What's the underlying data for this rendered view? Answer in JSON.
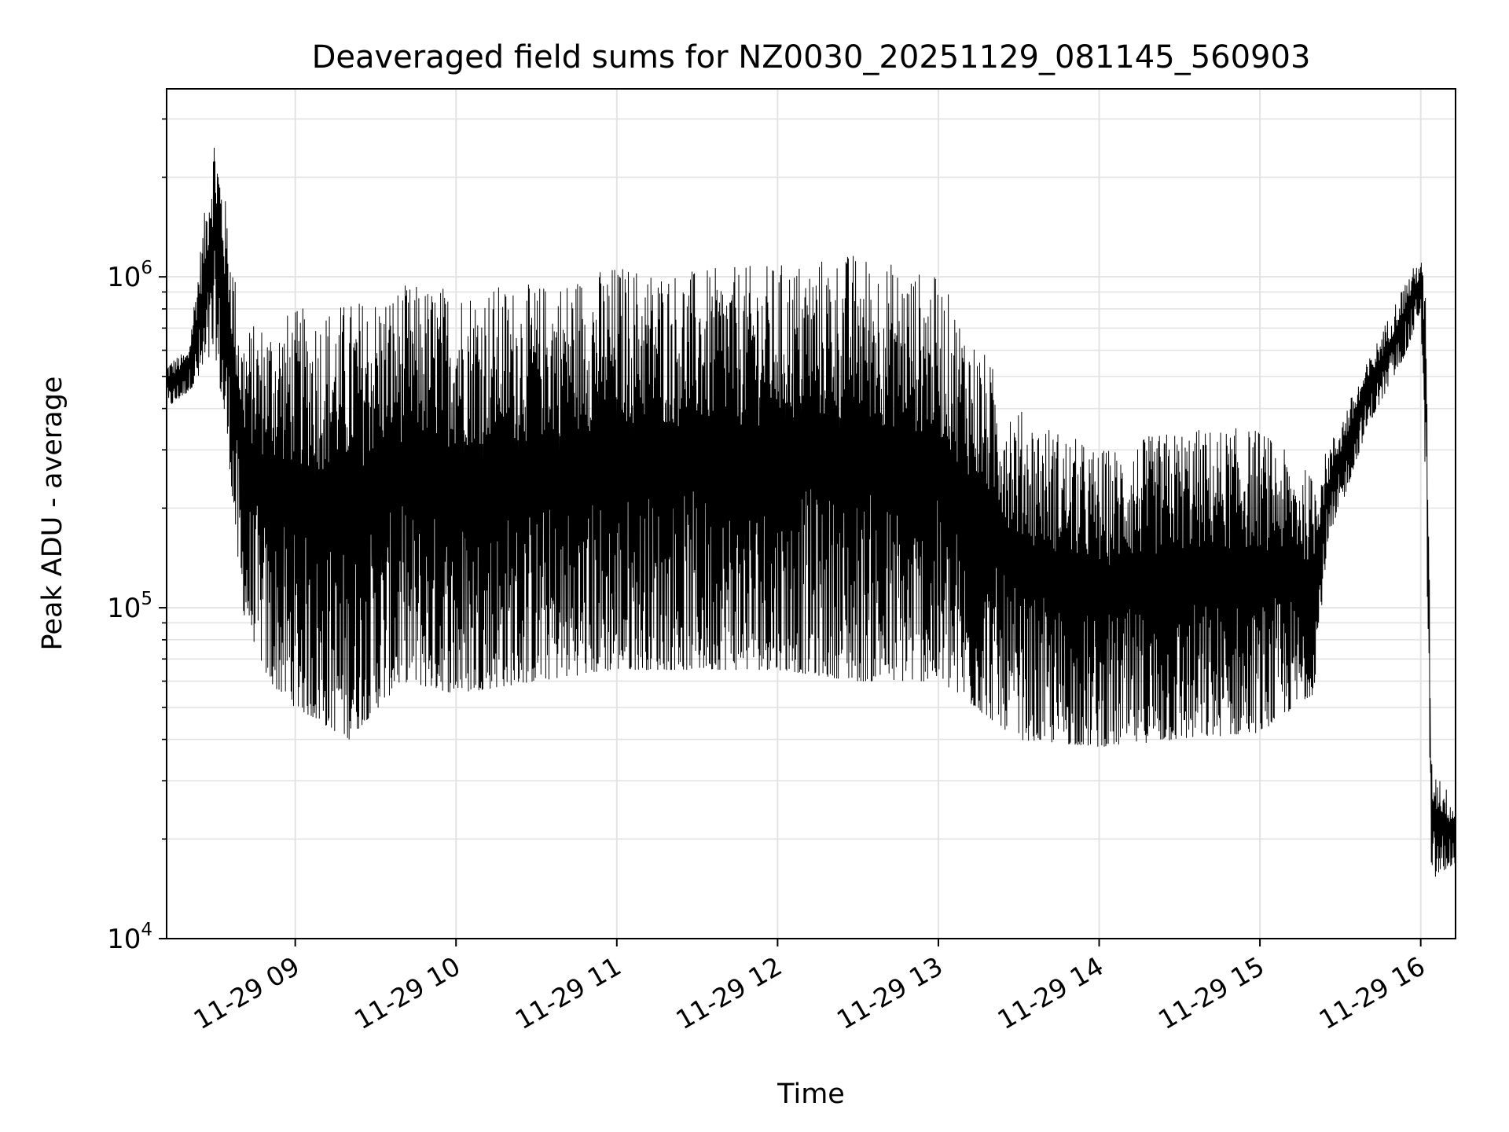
{
  "chart_data": {
    "type": "line",
    "title": "Deaveraged field sums for NZ0030_20251129_081145_560903",
    "xlabel": "Time",
    "ylabel": "Peak ADU - average",
    "yscale": "log",
    "ylim": [
      10000,
      3700000
    ],
    "xlim": [
      "2025-11-29 08:12",
      "2025-11-29 16:13"
    ],
    "grid": true,
    "line_color": "#000000",
    "x_ticks": [
      {
        "x": "2025-11-29 09:00",
        "label": "11-29 09"
      },
      {
        "x": "2025-11-29 10:00",
        "label": "11-29 10"
      },
      {
        "x": "2025-11-29 11:00",
        "label": "11-29 11"
      },
      {
        "x": "2025-11-29 12:00",
        "label": "11-29 12"
      },
      {
        "x": "2025-11-29 13:00",
        "label": "11-29 13"
      },
      {
        "x": "2025-11-29 14:00",
        "label": "11-29 14"
      },
      {
        "x": "2025-11-29 15:00",
        "label": "11-29 15"
      },
      {
        "x": "2025-11-29 16:00",
        "label": "11-29 16"
      }
    ],
    "y_ticks": [
      {
        "value": 10000,
        "base": "10",
        "exp": "4"
      },
      {
        "value": 100000,
        "base": "10",
        "exp": "5"
      },
      {
        "value": 1000000,
        "base": "10",
        "exp": "6"
      }
    ],
    "envelope": [
      {
        "x": "2025-11-29 08:12",
        "y_low": 400000,
        "y_high": 550000
      },
      {
        "x": "2025-11-29 08:20",
        "y_low": 450000,
        "y_high": 600000
      },
      {
        "x": "2025-11-29 08:25",
        "y_low": 500000,
        "y_high": 1300000
      },
      {
        "x": "2025-11-29 08:30",
        "y_low": 600000,
        "y_high": 2900000
      },
      {
        "x": "2025-11-29 08:35",
        "y_low": 300000,
        "y_high": 1500000
      },
      {
        "x": "2025-11-29 08:40",
        "y_low": 100000,
        "y_high": 700000
      },
      {
        "x": "2025-11-29 08:50",
        "y_low": 60000,
        "y_high": 750000
      },
      {
        "x": "2025-11-29 09:00",
        "y_low": 50000,
        "y_high": 800000
      },
      {
        "x": "2025-11-29 09:20",
        "y_low": 40000,
        "y_high": 850000
      },
      {
        "x": "2025-11-29 09:40",
        "y_low": 60000,
        "y_high": 950000
      },
      {
        "x": "2025-11-29 10:00",
        "y_low": 55000,
        "y_high": 950000
      },
      {
        "x": "2025-11-29 10:30",
        "y_low": 60000,
        "y_high": 950000
      },
      {
        "x": "2025-11-29 11:00",
        "y_low": 65000,
        "y_high": 1100000
      },
      {
        "x": "2025-11-29 11:30",
        "y_low": 65000,
        "y_high": 1050000
      },
      {
        "x": "2025-11-29 12:00",
        "y_low": 65000,
        "y_high": 1100000
      },
      {
        "x": "2025-11-29 12:30",
        "y_low": 60000,
        "y_high": 1200000
      },
      {
        "x": "2025-11-29 13:00",
        "y_low": 60000,
        "y_high": 1000000
      },
      {
        "x": "2025-11-29 13:30",
        "y_low": 40000,
        "y_high": 400000
      },
      {
        "x": "2025-11-29 14:00",
        "y_low": 38000,
        "y_high": 300000
      },
      {
        "x": "2025-11-29 14:30",
        "y_low": 40000,
        "y_high": 350000
      },
      {
        "x": "2025-11-29 15:00",
        "y_low": 42000,
        "y_high": 350000
      },
      {
        "x": "2025-11-29 15:20",
        "y_low": 55000,
        "y_high": 250000
      },
      {
        "x": "2025-11-29 15:25",
        "y_low": 150000,
        "y_high": 300000
      },
      {
        "x": "2025-11-29 15:40",
        "y_low": 350000,
        "y_high": 550000
      },
      {
        "x": "2025-11-29 15:55",
        "y_low": 600000,
        "y_high": 1000000
      },
      {
        "x": "2025-11-29 16:00",
        "y_low": 800000,
        "y_high": 1150000
      },
      {
        "x": "2025-11-29 16:02",
        "y_low": 200000,
        "y_high": 900000
      },
      {
        "x": "2025-11-29 16:04",
        "y_low": 15000,
        "y_high": 35000
      },
      {
        "x": "2025-11-29 16:13",
        "y_low": 17000,
        "y_high": 25000
      }
    ]
  }
}
